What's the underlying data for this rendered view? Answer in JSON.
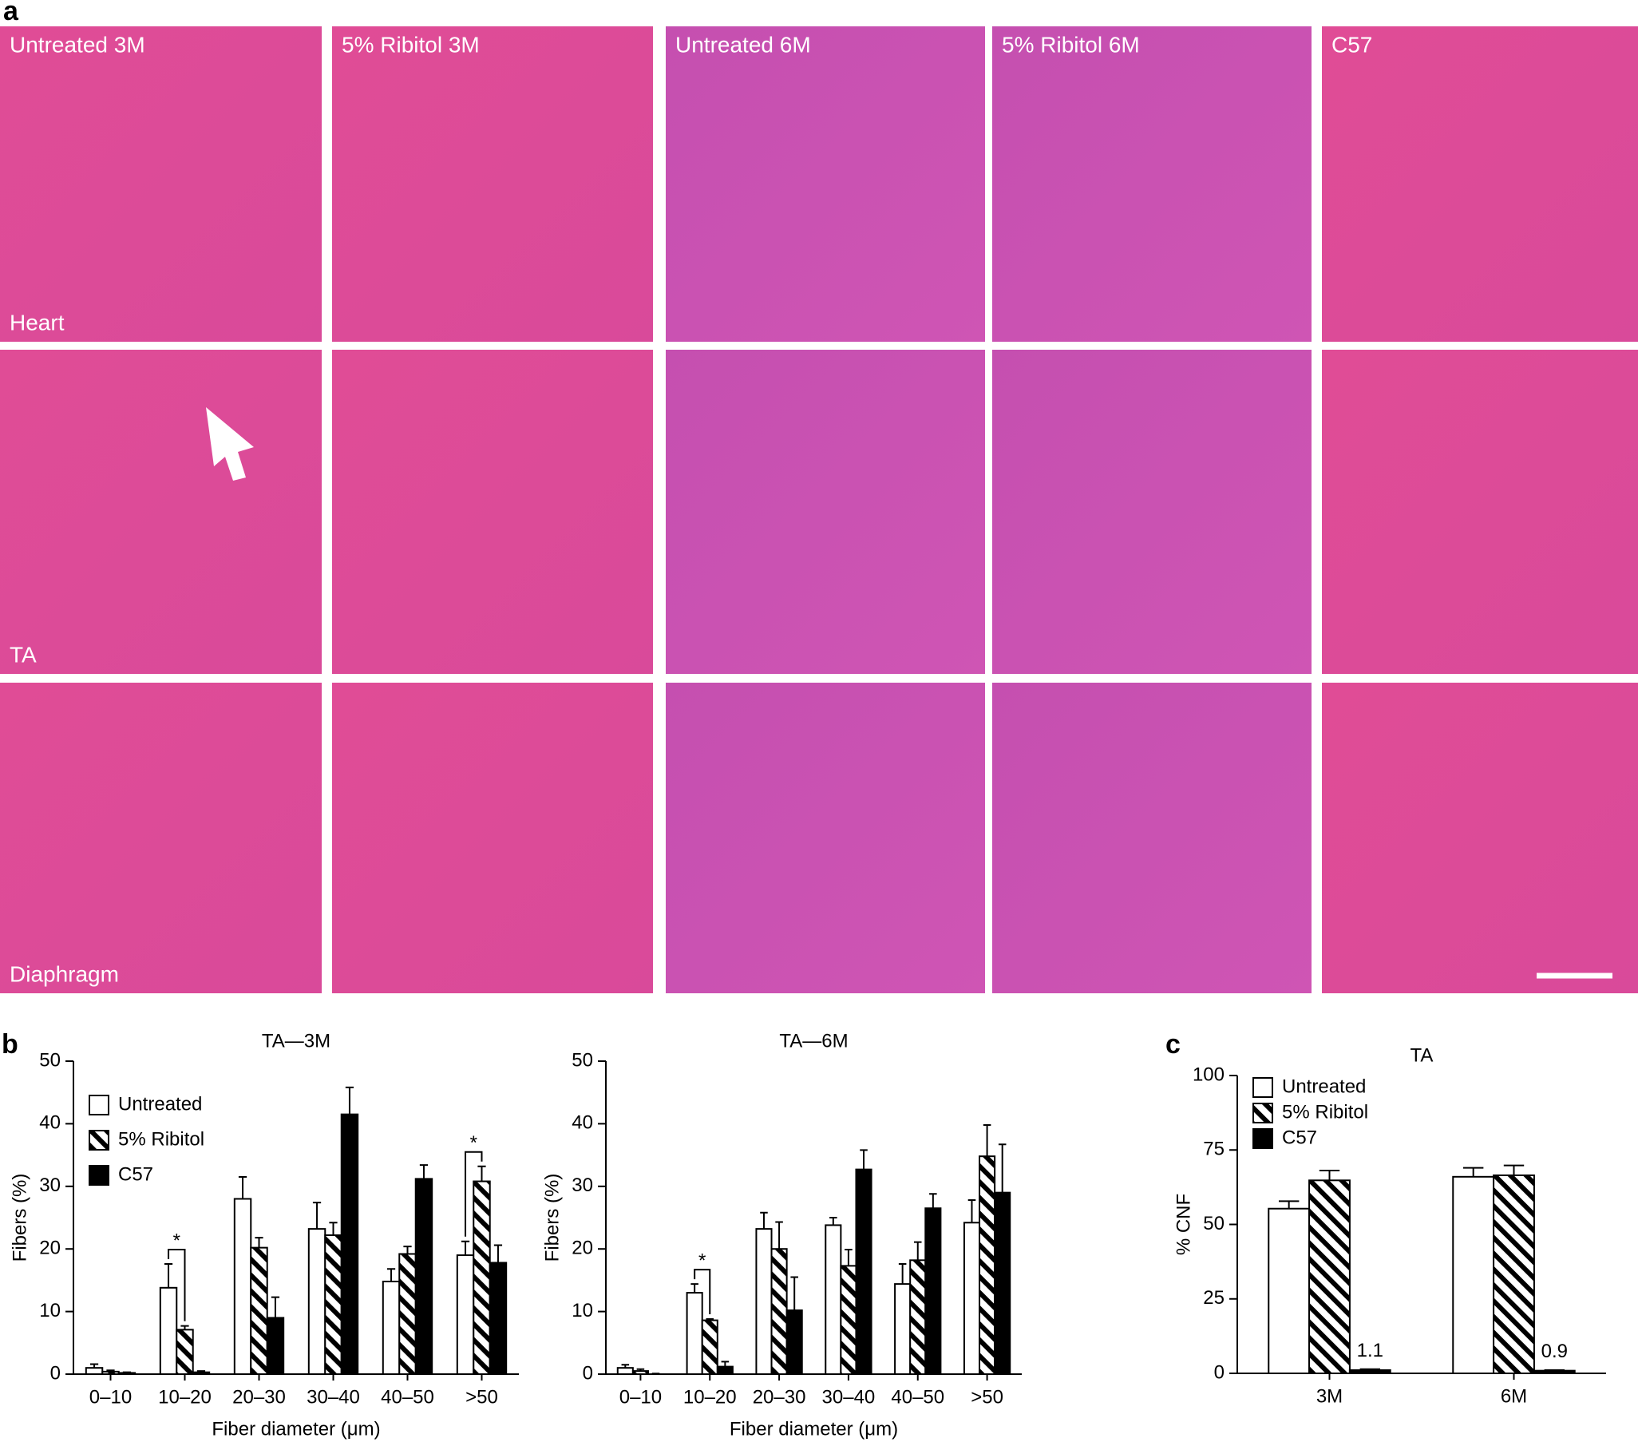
{
  "panel_letters": [
    "a",
    "b",
    "c"
  ],
  "panel_a": {
    "columns": [
      "Untreated 3M",
      "5% Ribitol 3M",
      "Untreated 6M",
      "5% Ribitol 6M",
      "C57"
    ],
    "rows": [
      "Heart",
      "TA",
      "Diaphragm"
    ]
  },
  "chart_data": [
    {
      "type": "bar",
      "title": "TA—3M",
      "x_label": "Fiber diameter (μm)",
      "y_label": "Fibers (%)",
      "categories": [
        "0–10",
        "10–20",
        "20–30",
        "30–40",
        "40–50",
        ">50"
      ],
      "series": [
        {
          "name": "Untreated",
          "fill": "white",
          "values": [
            1.0,
            13.8,
            28.0,
            23.2,
            14.8,
            19.0
          ],
          "errors": [
            0.6,
            3.8,
            3.5,
            4.2,
            2.0,
            2.2
          ]
        },
        {
          "name": "5% Ribitol",
          "fill": "hatch",
          "values": [
            0.4,
            7.1,
            20.2,
            22.2,
            19.2,
            30.8
          ],
          "errors": [
            0.2,
            0.6,
            1.6,
            2.0,
            1.2,
            2.4
          ]
        },
        {
          "name": "C57",
          "fill": "black",
          "values": [
            0.2,
            0.3,
            9.0,
            41.5,
            31.2,
            17.8
          ],
          "errors": [
            0.1,
            0.2,
            3.3,
            4.3,
            2.2,
            2.8
          ]
        }
      ],
      "ylim": [
        0,
        50
      ],
      "yticks": [
        0,
        10,
        20,
        30,
        40,
        50
      ],
      "legend": "upper left",
      "annotations": [
        {
          "text": "*",
          "category": "10–20"
        },
        {
          "text": "*",
          "category": ">50"
        }
      ]
    },
    {
      "type": "bar",
      "title": "TA—6M",
      "x_label": "Fiber diameter (μm)",
      "y_label": "Fibers (%)",
      "categories": [
        "0–10",
        "10–20",
        "20–30",
        "30–40",
        "40–50",
        ">50"
      ],
      "series": [
        {
          "name": "Untreated",
          "fill": "white",
          "values": [
            1.0,
            13.0,
            23.2,
            23.8,
            14.4,
            24.2
          ],
          "errors": [
            0.5,
            1.4,
            2.6,
            1.2,
            3.2,
            3.6
          ]
        },
        {
          "name": "5% Ribitol",
          "fill": "hatch",
          "values": [
            0.5,
            8.6,
            20.0,
            17.3,
            18.2,
            34.8
          ],
          "errors": [
            0.3,
            0.2,
            4.3,
            2.6,
            2.9,
            5.0
          ]
        },
        {
          "name": "C57",
          "fill": "black",
          "values": [
            0,
            1.2,
            10.2,
            32.7,
            26.5,
            29.0
          ],
          "errors": [
            0.1,
            0.8,
            5.3,
            3.1,
            2.3,
            7.7
          ]
        }
      ],
      "ylim": [
        0,
        50
      ],
      "yticks": [
        0,
        10,
        20,
        30,
        40,
        50
      ],
      "annotations": [
        {
          "text": "*",
          "category": "10–20"
        }
      ]
    },
    {
      "type": "bar",
      "title": "TA",
      "y_label": "% CNF",
      "categories": [
        "3M",
        "6M"
      ],
      "series": [
        {
          "name": "Untreated",
          "fill": "white",
          "values": [
            55.3,
            66.0
          ],
          "errors": [
            2.5,
            3.0
          ]
        },
        {
          "name": "5% Ribitol",
          "fill": "hatch",
          "values": [
            64.8,
            66.5
          ],
          "errors": [
            3.3,
            3.3
          ]
        },
        {
          "name": "C57",
          "fill": "black",
          "values": [
            1.1,
            0.9
          ],
          "errors": [
            0.3,
            0.2
          ],
          "data_labels": true
        }
      ],
      "ylim": [
        0,
        100
      ],
      "yticks": [
        0,
        25,
        50,
        75,
        100
      ],
      "legend": "upper left"
    }
  ]
}
